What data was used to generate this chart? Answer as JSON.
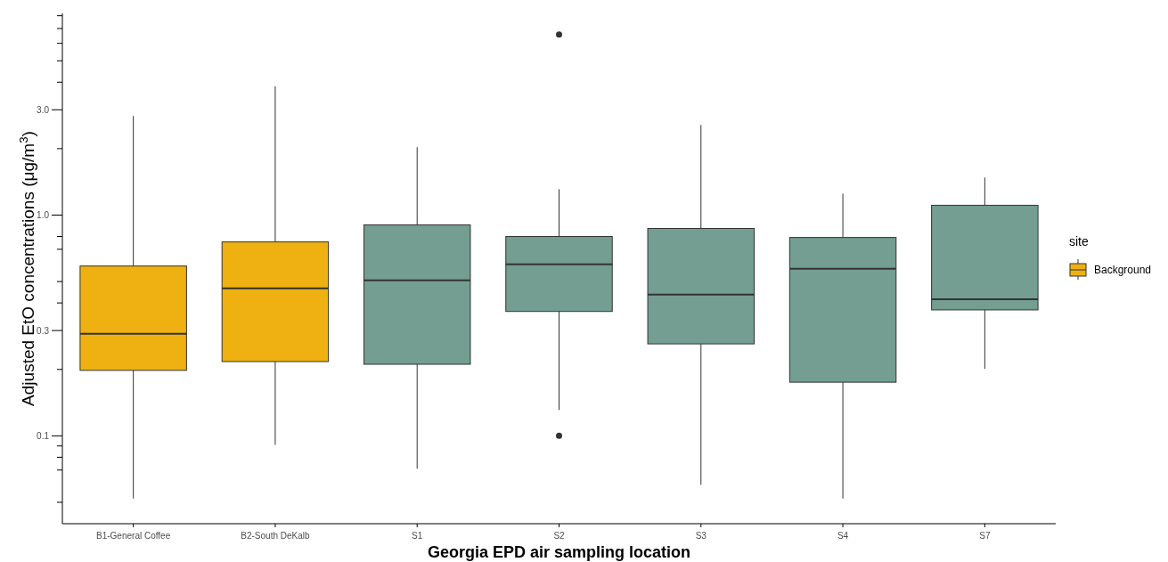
{
  "chart_data": {
    "type": "box",
    "xlabel": "Georgia EPD air sampling location",
    "ylabel": "Adjusted EtO concentrations (μg/m$^{3}$)",
    "legend_title": "site",
    "legend": "right",
    "log": "y",
    "grid": false,
    "categories": [
      "B1-General Coffee",
      "B2-South DeKalb",
      "S1",
      "S2",
      "S3",
      "S4",
      "S7"
    ],
    "ylim": [
      0.04,
      8.2
    ],
    "yticks": [
      {
        "value": 0.05,
        "label": null
      },
      {
        "value": 0.07,
        "label": null
      },
      {
        "value": 0.08,
        "label": null
      },
      {
        "value": 0.09,
        "label": null
      },
      {
        "value": 0.1,
        "label": "0.1"
      },
      {
        "value": 0.2,
        "label": null
      },
      {
        "value": 0.3,
        "label": "0.3"
      },
      {
        "value": 0.4,
        "label": null
      },
      {
        "value": 0.5,
        "label": null
      },
      {
        "value": 0.7,
        "label": null
      },
      {
        "value": 0.8,
        "label": null
      },
      {
        "value": 1,
        "label": "1.0"
      },
      {
        "value": 2,
        "label": null
      },
      {
        "value": 3,
        "label": "3.0"
      },
      {
        "value": 4,
        "label": null
      },
      {
        "value": 5,
        "label": null
      },
      {
        "value": 6,
        "label": null
      },
      {
        "value": 7,
        "label": null
      },
      {
        "value": 8,
        "label": null
      }
    ],
    "series": [
      {
        "name": "Background",
        "color": "#eeb111",
        "boxes": [
          {
            "low": 0.052,
            "q1": 0.198,
            "median": 0.29,
            "q3": 0.588,
            "high": 2.81
          },
          {
            "low": 0.091,
            "q1": 0.217,
            "median": 0.466,
            "q3": 0.756,
            "high": 3.83
          },
          null,
          null,
          null,
          null,
          null
        ]
      },
      {
        "color": "#739e91",
        "boxes": [
          null,
          null,
          {
            "low": 0.071,
            "q1": 0.211,
            "median": 0.506,
            "q3": 0.903,
            "high": 2.03
          },
          {
            "low": 0.131,
            "q1": 0.366,
            "median": 0.599,
            "q3": 0.8,
            "high": 1.31,
            "outliers": [
              6.57,
              0.1
            ]
          },
          {
            "low": 0.06,
            "q1": 0.261,
            "median": 0.436,
            "q3": 0.87,
            "high": 2.56
          },
          {
            "low": 0.052,
            "q1": 0.175,
            "median": 0.572,
            "q3": 0.792,
            "high": 1.25
          },
          {
            "low": 0.201,
            "q1": 0.372,
            "median": 0.416,
            "q3": 1.108,
            "high": 1.48
          }
        ]
      }
    ]
  }
}
